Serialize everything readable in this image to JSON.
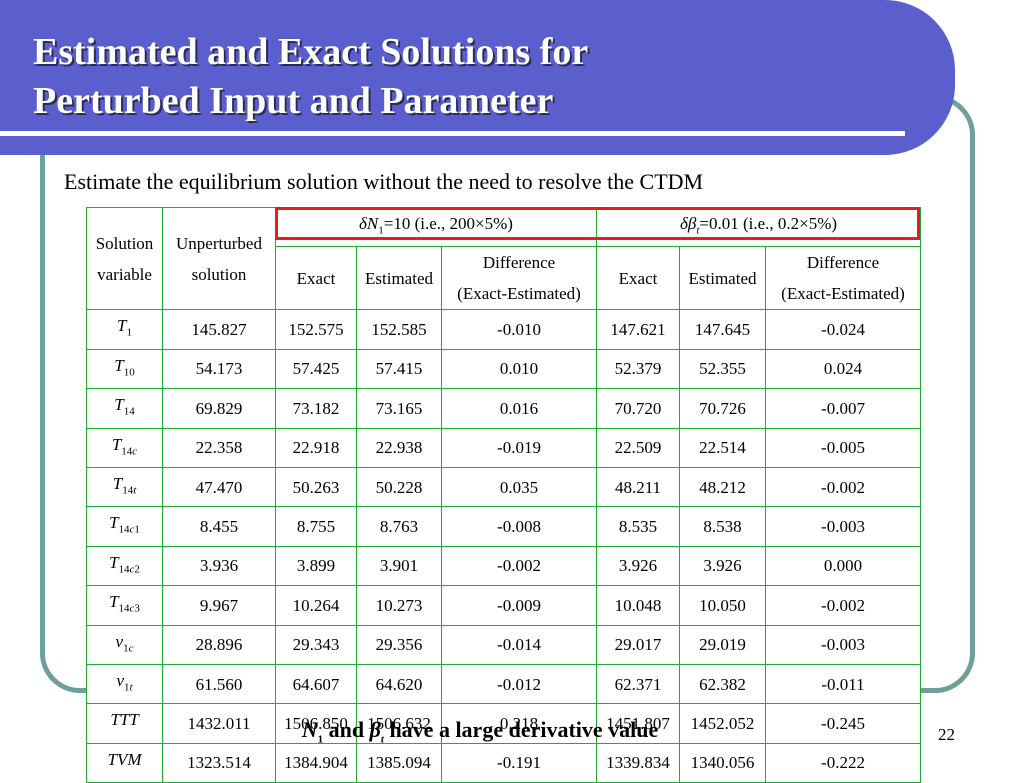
{
  "title": {
    "line1": "Estimated and Exact Solutions for",
    "line2": "Perturbed Input and Parameter"
  },
  "subtitle": "Estimate the equilibrium solution without the need to resolve the CTDM",
  "table": {
    "col_solution_variable": [
      "Solution",
      "variable"
    ],
    "col_unperturbed": [
      "Unperturbed",
      "solution"
    ],
    "group1": {
      "sym": "δN",
      "sub": "1",
      "rest": "=10 (i.e., 200×5%)"
    },
    "group2": {
      "sym": "δβ",
      "sub": "t",
      "rest": "=0.01 (i.e., 0.2×5%)"
    },
    "sub_exact": "Exact",
    "sub_estimated": "Estimated",
    "sub_difference": [
      "Difference",
      "(Exact-Estimated)"
    ],
    "rows": [
      {
        "var_main": "T",
        "var_sub": "1",
        "unpert": "145.827",
        "e1": "152.575",
        "s1": "152.585",
        "d1": "-0.010",
        "e2": "147.621",
        "s2": "147.645",
        "d2": "-0.024"
      },
      {
        "var_main": "T",
        "var_sub": "10",
        "unpert": "54.173",
        "e1": "57.425",
        "s1": "57.415",
        "d1": "0.010",
        "e2": "52.379",
        "s2": "52.355",
        "d2": "0.024"
      },
      {
        "var_main": "T",
        "var_sub": "14",
        "unpert": "69.829",
        "e1": "73.182",
        "s1": "73.165",
        "d1": "0.016",
        "e2": "70.720",
        "s2": "70.726",
        "d2": "-0.007"
      },
      {
        "var_main": "T",
        "var_sub": "14c",
        "unpert": "22.358",
        "e1": "22.918",
        "s1": "22.938",
        "d1": "-0.019",
        "e2": "22.509",
        "s2": "22.514",
        "d2": "-0.005"
      },
      {
        "var_main": "T",
        "var_sub": "14t",
        "unpert": "47.470",
        "e1": "50.263",
        "s1": "50.228",
        "d1": "0.035",
        "e2": "48.211",
        "s2": "48.212",
        "d2": "-0.002"
      },
      {
        "var_main": "T",
        "var_sub": "14c1",
        "unpert": "8.455",
        "e1": "8.755",
        "s1": "8.763",
        "d1": "-0.008",
        "e2": "8.535",
        "s2": "8.538",
        "d2": "-0.003"
      },
      {
        "var_main": "T",
        "var_sub": "14c2",
        "unpert": "3.936",
        "e1": "3.899",
        "s1": "3.901",
        "d1": "-0.002",
        "e2": "3.926",
        "s2": "3.926",
        "d2": "0.000"
      },
      {
        "var_main": "T",
        "var_sub": "14c3",
        "unpert": "9.967",
        "e1": "10.264",
        "s1": "10.273",
        "d1": "-0.009",
        "e2": "10.048",
        "s2": "10.050",
        "d2": "-0.002"
      },
      {
        "var_main": "v",
        "var_sub": "1c",
        "unpert": "28.896",
        "e1": "29.343",
        "s1": "29.356",
        "d1": "-0.014",
        "e2": "29.017",
        "s2": "29.019",
        "d2": "-0.003"
      },
      {
        "var_main": "v",
        "var_sub": "1t",
        "unpert": "61.560",
        "e1": "64.607",
        "s1": "64.620",
        "d1": "-0.012",
        "e2": "62.371",
        "s2": "62.382",
        "d2": "-0.011"
      },
      {
        "var_main": "TTT",
        "var_sub": "",
        "unpert": "1432.011",
        "e1": "1506.850",
        "s1": "1506.632",
        "d1": "0.218",
        "e2": "1451.807",
        "s2": "1452.052",
        "d2": "-0.245"
      },
      {
        "var_main": "TVM",
        "var_sub": "",
        "unpert": "1323.514",
        "e1": "1384.904",
        "s1": "1385.094",
        "d1": "-0.191",
        "e2": "1339.834",
        "s2": "1340.056",
        "d2": "-0.222"
      }
    ]
  },
  "footer": {
    "n": "N",
    "n_sub": "1",
    "and": " and ",
    "beta": "β",
    "beta_sub": "t",
    "rest": " have a large derivative value"
  },
  "page_number": "22",
  "colors": {
    "title_band": "#5b5fce",
    "frame_border": "#6f9f9a",
    "table_border": "#22aa33",
    "highlight_border": "#e02020"
  }
}
